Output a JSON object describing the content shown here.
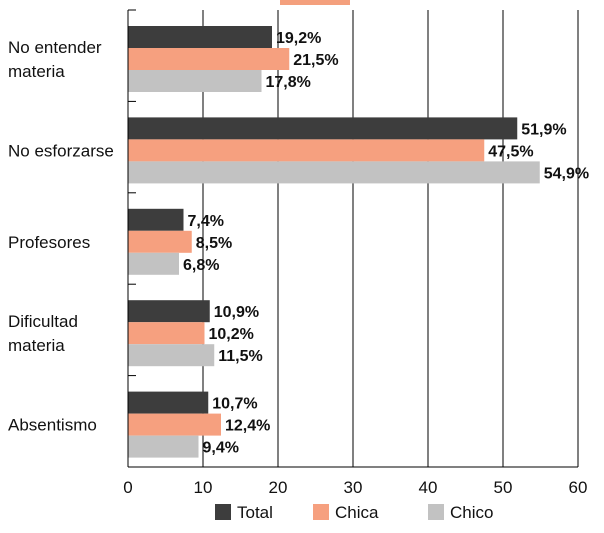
{
  "chart_data": {
    "type": "bar",
    "orientation": "horizontal",
    "categories": [
      [
        "No entender",
        "materia"
      ],
      [
        "No esforzarse"
      ],
      [
        "Profesores"
      ],
      [
        "Dificultad",
        "materia"
      ],
      [
        "Absentismo"
      ]
    ],
    "series": [
      {
        "name": "Total",
        "color": "#3d3d3d",
        "values": [
          19.2,
          51.9,
          7.4,
          10.9,
          10.7
        ],
        "labels": [
          "19,2%",
          "51,9%",
          "7,4%",
          "10,9%",
          "10,7%"
        ]
      },
      {
        "name": "Chica",
        "color": "#f6a07f",
        "values": [
          21.5,
          47.5,
          8.5,
          10.2,
          12.4
        ],
        "labels": [
          "21,5%",
          "47,5%",
          "8,5%",
          "10,2%",
          "12,4%"
        ]
      },
      {
        "name": "Chico",
        "color": "#c2c2c2",
        "values": [
          17.8,
          54.9,
          6.8,
          11.5,
          9.4
        ],
        "labels": [
          "17,8%",
          "54,9%",
          "6,8%",
          "11,5%",
          "9,4%"
        ]
      }
    ],
    "xlim": [
      0,
      60
    ],
    "xticks": [
      0,
      10,
      20,
      30,
      40,
      50,
      60
    ],
    "xtick_labels": [
      "0",
      "10",
      "20",
      "30",
      "40",
      "50",
      "60"
    ],
    "grid": "vertical",
    "legend": "bottom"
  }
}
